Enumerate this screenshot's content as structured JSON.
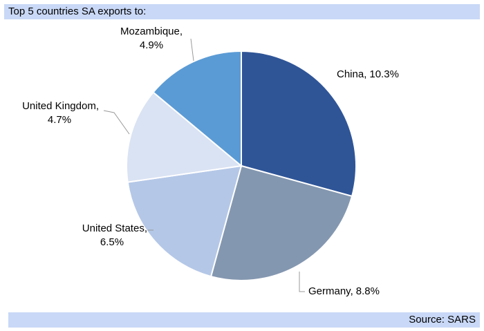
{
  "chart_data": {
    "type": "pie",
    "title": "Top 5 countries SA exports to:",
    "source": "Source: SARS",
    "categories": [
      "China",
      "Germany",
      "United States",
      "United Kingdom",
      "Mozambique"
    ],
    "values": [
      10.3,
      8.8,
      6.5,
      4.7,
      4.9
    ],
    "value_labels": [
      "10.3%",
      "8.8%",
      "6.5%",
      "4.7%",
      "4.9%"
    ],
    "label_separator": ",",
    "colors": [
      "#2f5597",
      "#8497b0",
      "#b4c7e7",
      "#dae3f3",
      "#5b9bd5"
    ]
  }
}
